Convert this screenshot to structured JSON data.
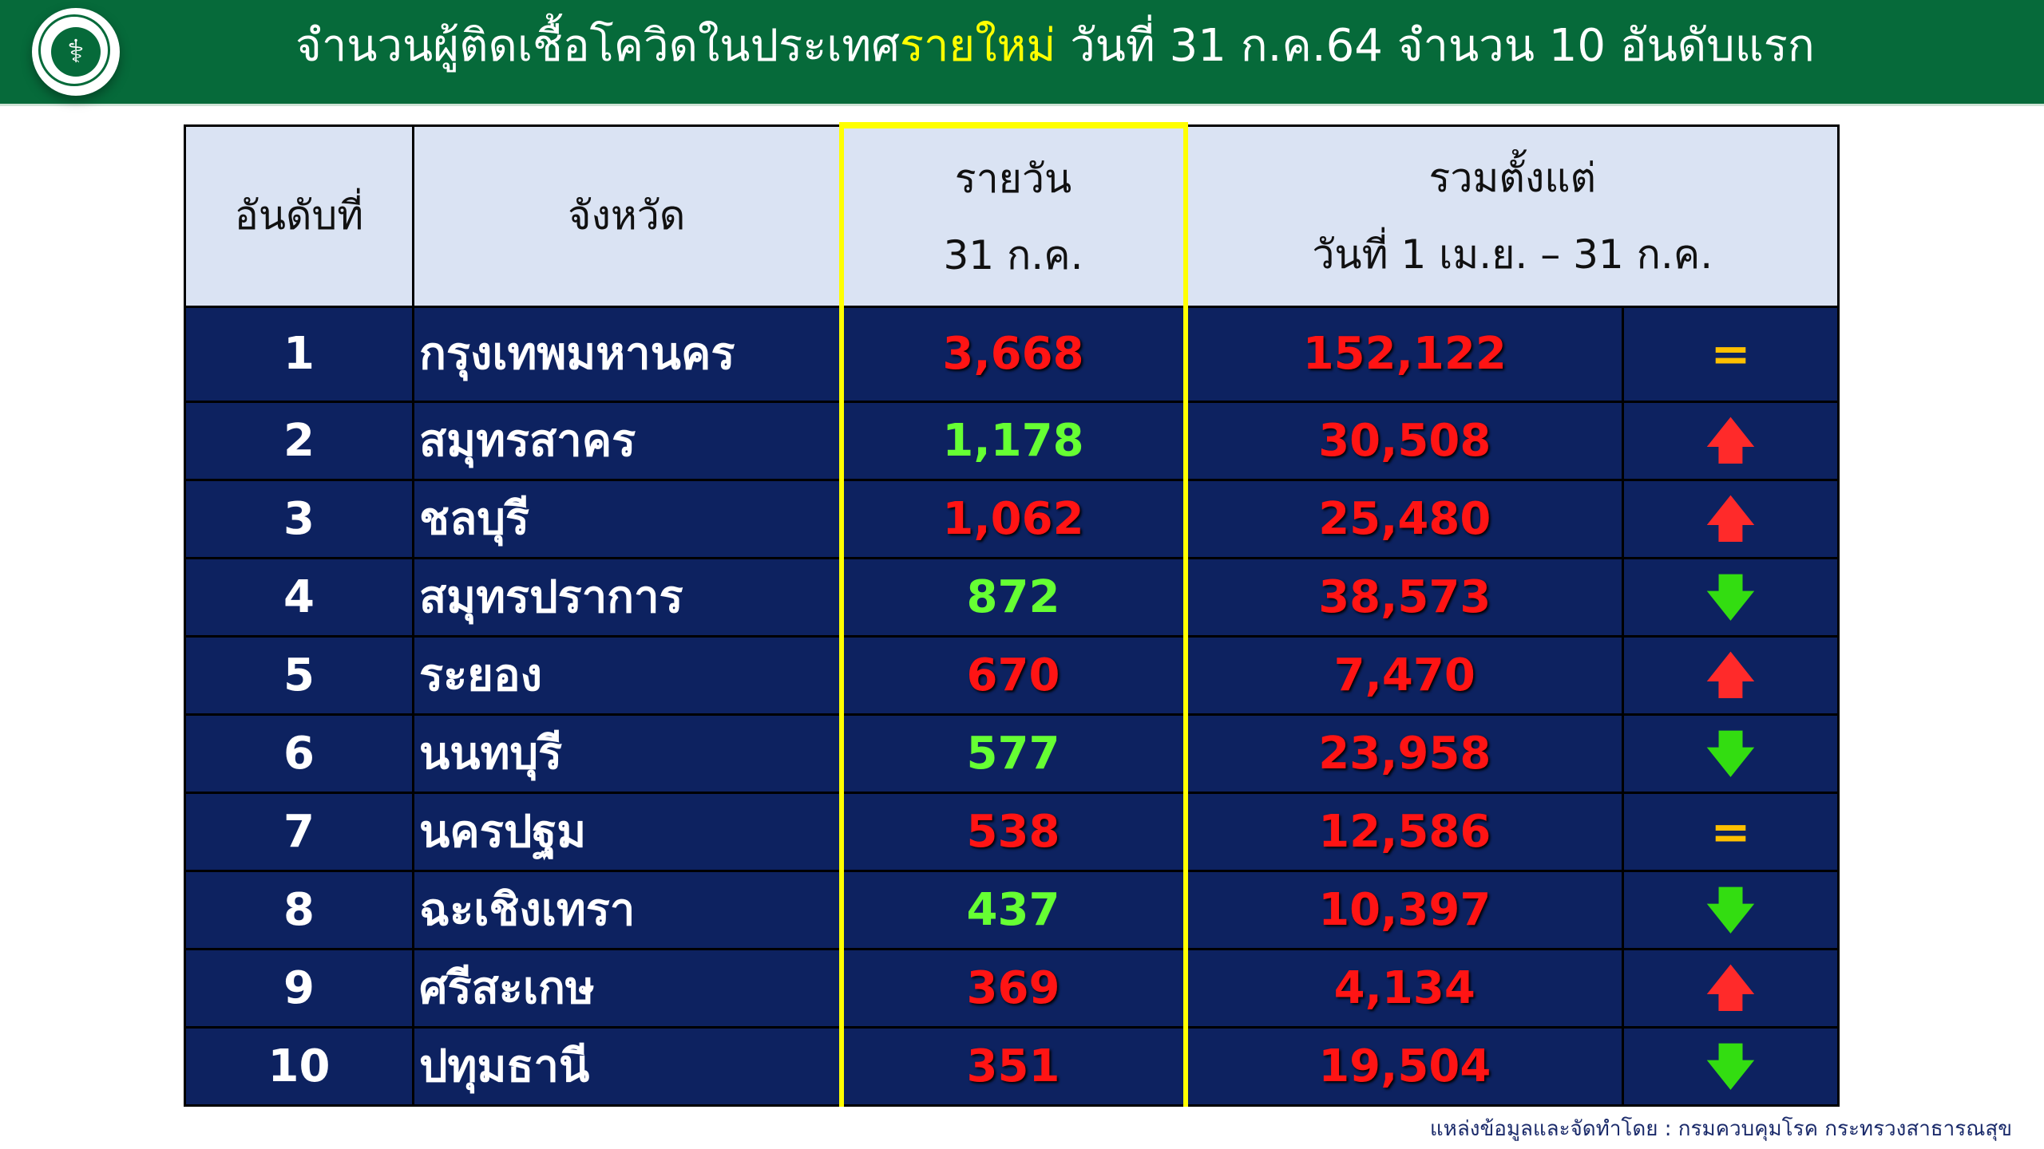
{
  "header": {
    "title_prefix": "จำนวนผู้ติดเชื้อโควิดในประเทศ",
    "title_highlight": "รายใหม่",
    "title_suffix": " วันที่ 31 ก.ค.64 จำนวน 10 อันดับแรก",
    "logo": "ministry-of-public-health-seal"
  },
  "table": {
    "headers": {
      "rank": "อันดับที่",
      "province": "จังหวัด",
      "daily_line1": "รายวัน",
      "daily_line2": "31 ก.ค.",
      "cum_line1": "รวมตั้งแต่",
      "cum_line2": "วันที่ 1 เม.ย. – 31 ก.ค."
    },
    "rows": [
      {
        "rank": "1",
        "province": "กรุงเทพมหานคร",
        "daily": "3,668",
        "daily_color": "red",
        "cumulative": "152,122",
        "trend": "=",
        "trend_icon": "equal-icon"
      },
      {
        "rank": "2",
        "province": "สมุทรสาคร",
        "daily": "1,178",
        "daily_color": "green",
        "cumulative": "30,508",
        "trend": "🡅",
        "trend_icon": "arrow-up-icon"
      },
      {
        "rank": "3",
        "province": "ชลบุรี",
        "daily": "1,062",
        "daily_color": "red",
        "cumulative": "25,480",
        "trend": "🡅",
        "trend_icon": "arrow-up-icon"
      },
      {
        "rank": "4",
        "province": "สมุทรปราการ",
        "daily": "872",
        "daily_color": "green",
        "cumulative": "38,573",
        "trend": "🡇",
        "trend_icon": "arrow-down-icon"
      },
      {
        "rank": "5",
        "province": "ระยอง",
        "daily": "670",
        "daily_color": "red",
        "cumulative": "7,470",
        "trend": "🡅",
        "trend_icon": "arrow-up-icon"
      },
      {
        "rank": "6",
        "province": "นนทบุรี",
        "daily": "577",
        "daily_color": "green",
        "cumulative": "23,958",
        "trend": "🡇",
        "trend_icon": "arrow-down-icon"
      },
      {
        "rank": "7",
        "province": "นครปฐม",
        "daily": "538",
        "daily_color": "red",
        "cumulative": "12,586",
        "trend": "=",
        "trend_icon": "equal-icon"
      },
      {
        "rank": "8",
        "province": "ฉะเชิงเทรา",
        "daily": "437",
        "daily_color": "green",
        "cumulative": "10,397",
        "trend": "🡇",
        "trend_icon": "arrow-down-icon"
      },
      {
        "rank": "9",
        "province": "ศรีสะเกษ",
        "daily": "369",
        "daily_color": "red",
        "cumulative": "4,134",
        "trend": "🡅",
        "trend_icon": "arrow-up-icon"
      },
      {
        "rank": "10",
        "province": "ปทุมธานี",
        "daily": "351",
        "daily_color": "red",
        "cumulative": "19,504",
        "trend": "🡇",
        "trend_icon": "arrow-down-icon"
      }
    ]
  },
  "footer": {
    "source": "แหล่งข้อมูลและจัดทำโดย : กรมควบคุมโรค กระทรวงสาธารณสุข"
  },
  "colors": {
    "banner": "#066a3a",
    "highlight": "#ffff00",
    "row_bg": "#0d2260",
    "header_bg": "#dae3f3",
    "red": "#ff1414",
    "green": "#66ff33",
    "equal": "#ffc000"
  }
}
